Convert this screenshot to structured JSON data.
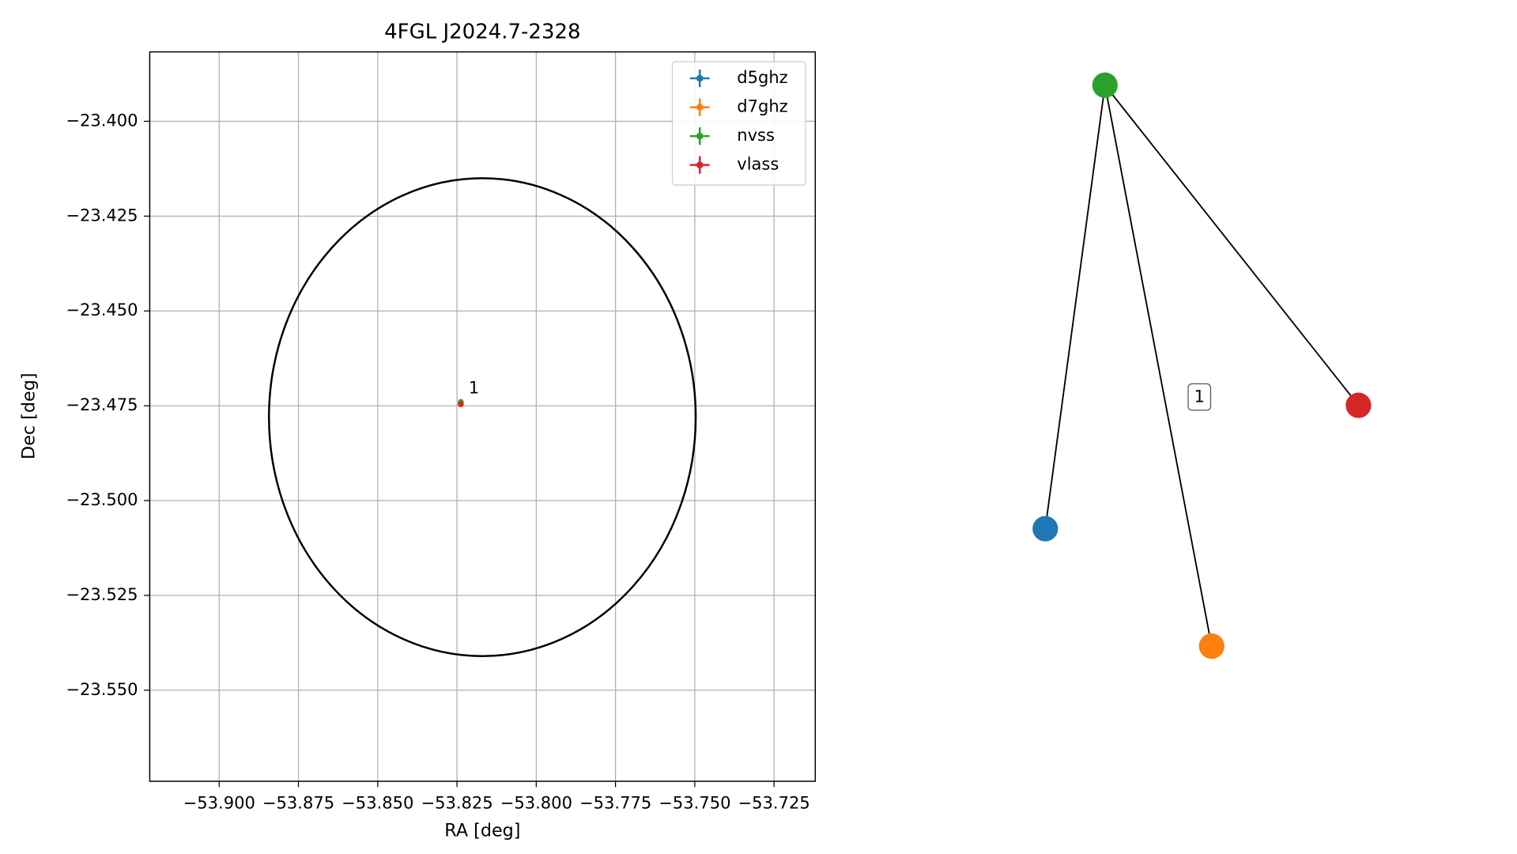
{
  "chart_data": [
    {
      "type": "scatter",
      "title": "4FGL J2024.7-2328",
      "xlabel": "RA [deg]",
      "ylabel": "Dec [deg]",
      "xlim": [
        -53.9219,
        -53.712
      ],
      "ylim": [
        -23.574,
        -23.3817
      ],
      "xticks": [
        {
          "value": -53.9,
          "label": "−53.900"
        },
        {
          "value": -53.875,
          "label": "−53.875"
        },
        {
          "value": -53.85,
          "label": "−53.850"
        },
        {
          "value": -53.825,
          "label": "−53.825"
        },
        {
          "value": -53.8,
          "label": "−53.800"
        },
        {
          "value": -53.775,
          "label": "−53.775"
        },
        {
          "value": -53.75,
          "label": "−53.750"
        },
        {
          "value": -53.725,
          "label": "−53.725"
        }
      ],
      "yticks": [
        {
          "value": -23.4,
          "label": "−23.400"
        },
        {
          "value": -23.425,
          "label": "−23.425"
        },
        {
          "value": -23.45,
          "label": "−23.450"
        },
        {
          "value": -23.475,
          "label": "−23.475"
        },
        {
          "value": -23.5,
          "label": "−23.500"
        },
        {
          "value": -23.525,
          "label": "−23.525"
        },
        {
          "value": -23.55,
          "label": "−23.550"
        }
      ],
      "grid": true,
      "legend": "upper right",
      "series": [
        {
          "name": "d5ghz",
          "color": "#1f77b4",
          "x": [
            -53.8238
          ],
          "values": [
            -23.4744
          ]
        },
        {
          "name": "d7ghz",
          "color": "#ff7f0e",
          "x": [
            -53.8238
          ],
          "values": [
            -23.4744
          ]
        },
        {
          "name": "nvss",
          "color": "#2ca02c",
          "x": [
            -53.8238
          ],
          "values": [
            -23.474
          ]
        },
        {
          "name": "vlass",
          "color": "#d62728",
          "x": [
            -53.8238
          ],
          "values": [
            -23.4746
          ]
        }
      ],
      "annotation": "1",
      "ellipse": {
        "center_x": -53.817,
        "center_y": -23.478,
        "half_width": 0.0673,
        "half_height": 0.063,
        "color": "#000000"
      }
    },
    {
      "type": "network",
      "edge_label": "1"
    }
  ]
}
